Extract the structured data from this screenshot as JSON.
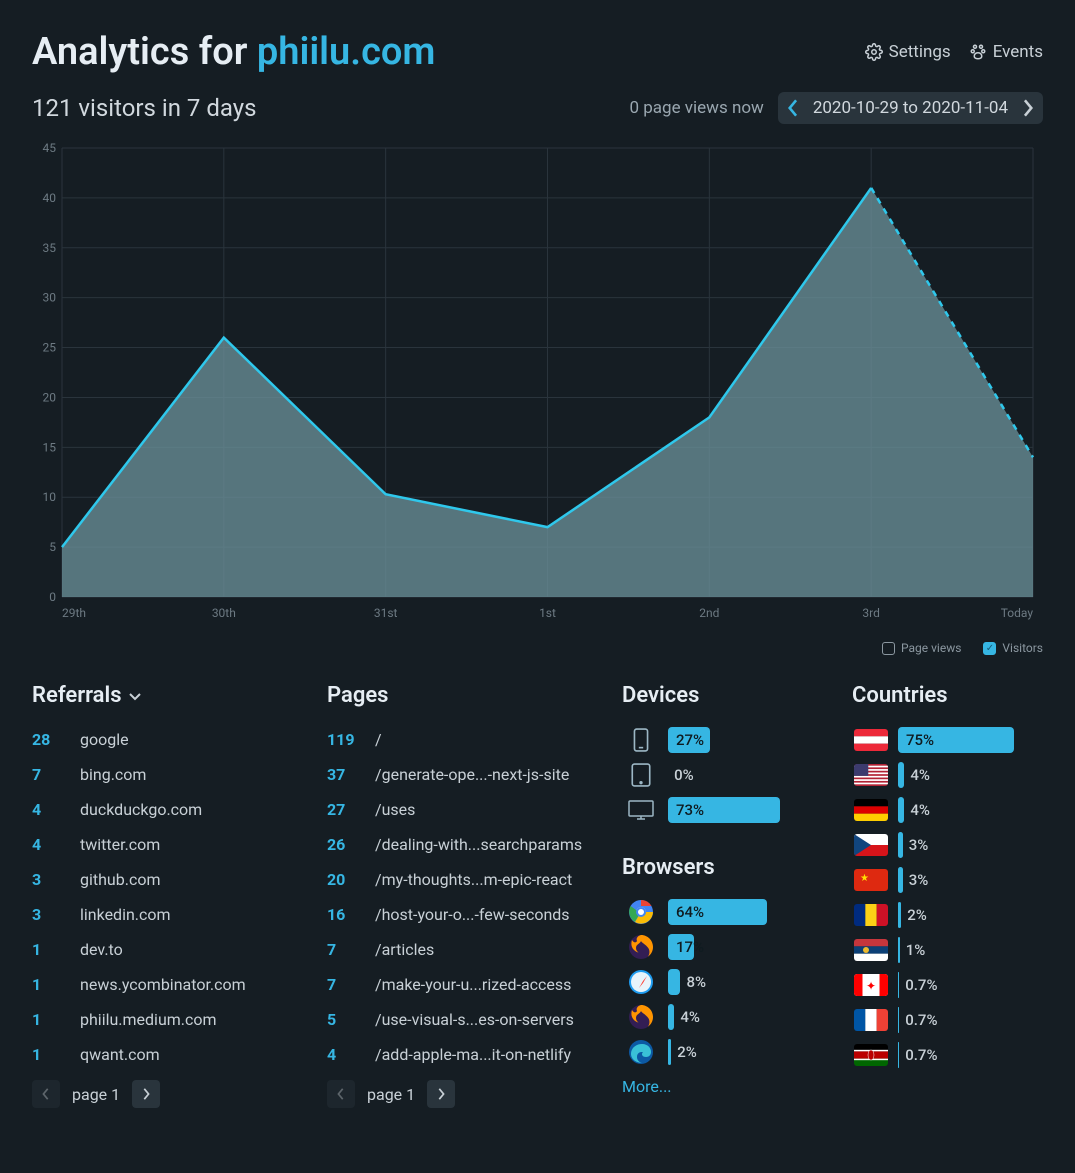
{
  "header": {
    "title_prefix": "Analytics for ",
    "domain": "phiilu.com",
    "settings_label": "Settings",
    "events_label": "Events"
  },
  "subheader": {
    "summary": "121 visitors in 7 days",
    "pageviews_now": "0 page views now",
    "date_range": "2020-10-29 to 2020-11-04"
  },
  "chart": {
    "type": "area",
    "x_labels": [
      "29th",
      "30th",
      "31st",
      "1st",
      "2nd",
      "3rd",
      "Today"
    ],
    "values": [
      5,
      26,
      10.3,
      7,
      18,
      41,
      14
    ],
    "ylim": [
      0,
      45
    ],
    "ytick_step": 5,
    "line_color": "#2fc8ec",
    "fill_color": "#698e97",
    "fill_opacity": 0.78,
    "grid_color": "#2a343c",
    "background_color": "#151d23",
    "axis_text_color": "#6d7a83",
    "legend": {
      "pageviews": {
        "label": "Page views",
        "checked": false
      },
      "visitors": {
        "label": "Visitors",
        "checked": true
      }
    }
  },
  "referrals": {
    "title": "Referrals",
    "items": [
      {
        "count": "28",
        "label": "google"
      },
      {
        "count": "7",
        "label": "bing.com"
      },
      {
        "count": "4",
        "label": "duckduckgo.com"
      },
      {
        "count": "4",
        "label": "twitter.com"
      },
      {
        "count": "3",
        "label": "github.com"
      },
      {
        "count": "3",
        "label": "linkedin.com"
      },
      {
        "count": "1",
        "label": "dev.to"
      },
      {
        "count": "1",
        "label": "news.ycombinator.com"
      },
      {
        "count": "1",
        "label": "phiilu.medium.com"
      },
      {
        "count": "1",
        "label": "qwant.com"
      }
    ],
    "pager": "page 1"
  },
  "pages": {
    "title": "Pages",
    "items": [
      {
        "count": "119",
        "label": "/"
      },
      {
        "count": "37",
        "label": "/generate-ope...-next-js-site"
      },
      {
        "count": "27",
        "label": "/uses"
      },
      {
        "count": "26",
        "label": "/dealing-with...searchparams"
      },
      {
        "count": "20",
        "label": "/my-thoughts...m-epic-react"
      },
      {
        "count": "16",
        "label": "/host-your-o...-few-seconds"
      },
      {
        "count": "7",
        "label": "/articles"
      },
      {
        "count": "7",
        "label": "/make-your-u...rized-access"
      },
      {
        "count": "5",
        "label": "/use-visual-s...es-on-servers"
      },
      {
        "count": "4",
        "label": "/add-apple-ma...it-on-netlify"
      }
    ],
    "pager": "page 1"
  },
  "devices": {
    "title": "Devices",
    "items": [
      {
        "icon": "phone",
        "pct": 27,
        "label": "27%"
      },
      {
        "icon": "tablet",
        "pct": 0,
        "label": "0%"
      },
      {
        "icon": "desktop",
        "pct": 73,
        "label": "73%"
      }
    ]
  },
  "browsers": {
    "title": "Browsers",
    "more_label": "More...",
    "items": [
      {
        "name": "chrome",
        "pct": 64,
        "label": "64%"
      },
      {
        "name": "firefox",
        "pct": 17,
        "label": "17%"
      },
      {
        "name": "safari",
        "pct": 8,
        "label": "8%"
      },
      {
        "name": "firefox-nightly",
        "pct": 4,
        "label": "4%"
      },
      {
        "name": "edge",
        "pct": 2,
        "label": "2%"
      }
    ]
  },
  "countries": {
    "title": "Countries",
    "items": [
      {
        "code": "at",
        "pct": 75,
        "label": "75%"
      },
      {
        "code": "us",
        "pct": 4,
        "label": "4%"
      },
      {
        "code": "de",
        "pct": 4,
        "label": "4%"
      },
      {
        "code": "cz",
        "pct": 3,
        "label": "3%"
      },
      {
        "code": "cn",
        "pct": 3,
        "label": "3%"
      },
      {
        "code": "ro",
        "pct": 2,
        "label": "2%"
      },
      {
        "code": "rs",
        "pct": 1,
        "label": "1%"
      },
      {
        "code": "ca",
        "pct": 0.7,
        "label": "0.7%"
      },
      {
        "code": "fr",
        "pct": 0.7,
        "label": "0.7%"
      },
      {
        "code": "ke",
        "pct": 0.7,
        "label": "0.7%"
      }
    ]
  },
  "colors": {
    "accent": "#36b6e3",
    "text": "#c8d0d6",
    "text_strong": "#e6edf3",
    "text_muted": "#6d7a83",
    "panel": "#29343c",
    "bg": "#151d23"
  }
}
